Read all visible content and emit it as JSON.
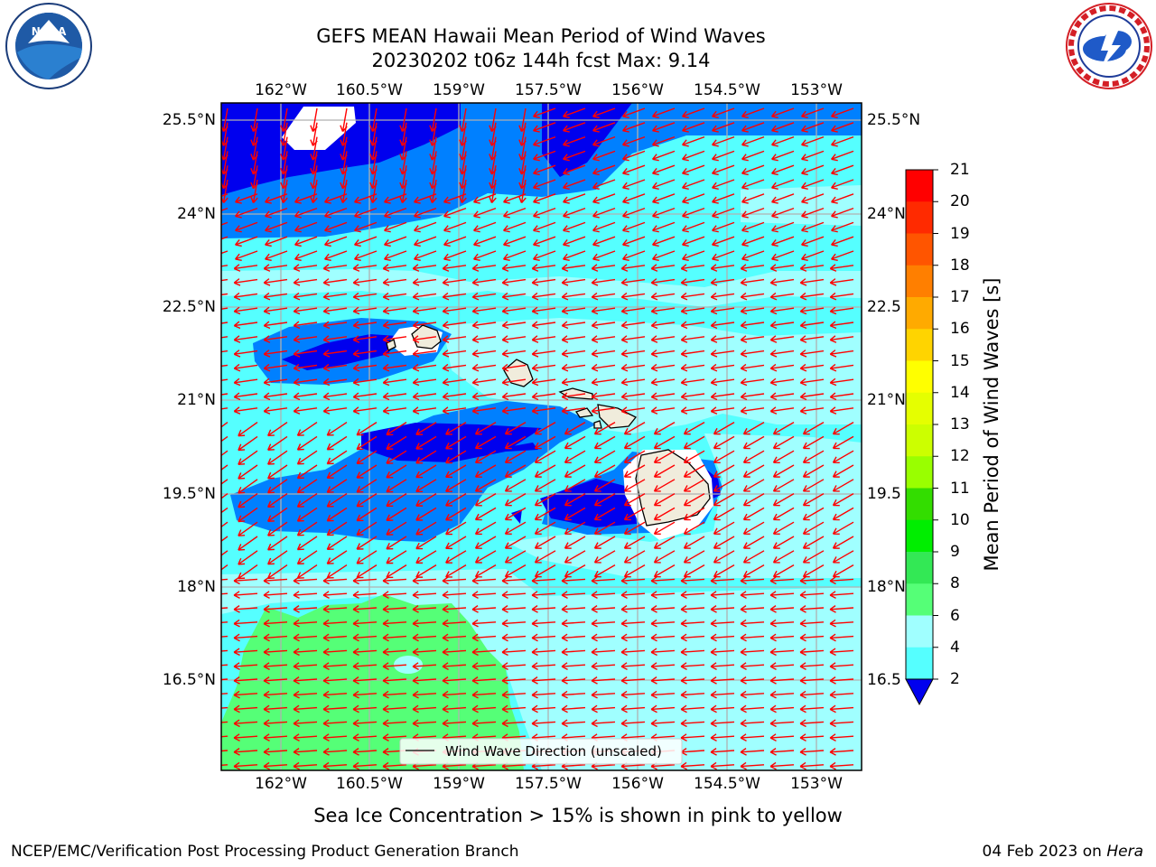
{
  "header": {
    "title_line1": "GEFS MEAN Hawaii Mean Period of Wind Waves",
    "title_line2": "20230202 t06z 144h fcst   Max: 9.14"
  },
  "logos": {
    "left": {
      "icon": "noaa-logo",
      "text": "NOAA",
      "ring_text": "NATIONAL OCEANIC AND ATMOSPHERIC ADMINISTRATION · U.S. DEPARTMENT OF COMMERCE"
    },
    "right": {
      "icon": "nws-logo",
      "ring_text": "NATIONAL WEATHER SERVICE"
    }
  },
  "map": {
    "lon_ticks": [
      "162°W",
      "160.5°W",
      "159°W",
      "157.5°W",
      "156°W",
      "154.5°W",
      "153°W"
    ],
    "lat_ticks": [
      "25.5°N",
      "24°N",
      "22.5°N",
      "21°N",
      "19.5°N",
      "18°N",
      "16.5°N"
    ],
    "lat_ticks_right": [
      "25.5°N",
      "24°N",
      "22.5",
      "21°N",
      "19.5",
      "18°N",
      "16.5"
    ],
    "legend_label": "Wind Wave Direction (unscaled)",
    "arrow_color": "#ff0000",
    "land_color": "#f0ecdc"
  },
  "colorbar": {
    "label": "Mean Period of Wind Waves [s]",
    "ticks": [
      "21",
      "20",
      "19",
      "18",
      "17",
      "16",
      "15",
      "14",
      "13",
      "12",
      "11",
      "10",
      "9",
      "8",
      "6",
      "4",
      "2"
    ],
    "colors": [
      "#ff0000",
      "#ff2a00",
      "#ff5500",
      "#ff7f00",
      "#ffaa00",
      "#ffd400",
      "#ffff00",
      "#e5ff00",
      "#ccff00",
      "#99ff00",
      "#33dd00",
      "#00ee00",
      "#33e855",
      "#55ff77",
      "#a0ffff",
      "#55ffff",
      "#00ffff",
      "#0080ff",
      "#0000ee"
    ]
  },
  "notes": {
    "sea_ice": "Sea Ice Concentration > 15% is shown in pink to yellow"
  },
  "footer": {
    "left": "NCEP/EMC/Verification Post Processing Product Generation Branch",
    "date": "04 Feb 2023 on ",
    "machine": "Hera"
  }
}
